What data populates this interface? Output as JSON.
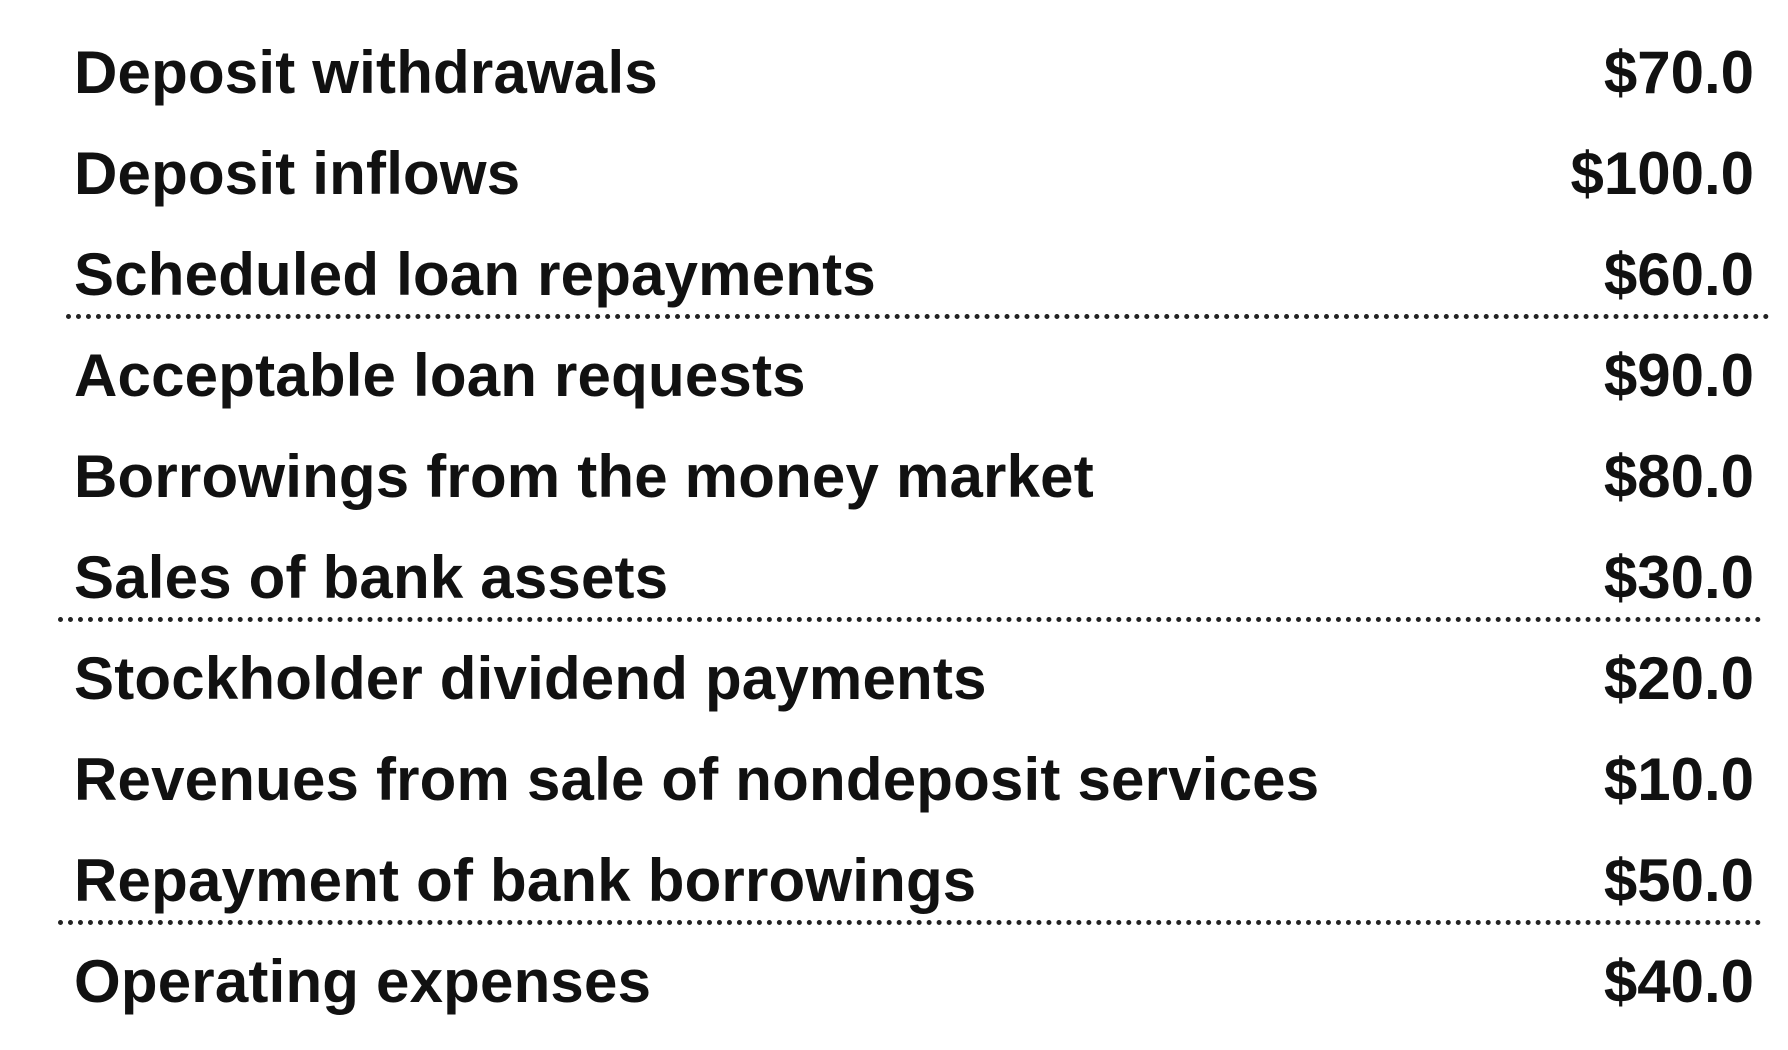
{
  "items": [
    {
      "label": "Deposit withdrawals",
      "value": "$70.0"
    },
    {
      "label": "Deposit inflows",
      "value": "$100.0"
    },
    {
      "label": "Scheduled loan repayments",
      "value": "$60.0"
    },
    {
      "label": "Acceptable loan  requests",
      "value": "$90.0"
    },
    {
      "label": "Borrowings from the money market",
      "value": "$80.0"
    },
    {
      "label": "Sales of bank assets",
      "value": "$30.0"
    },
    {
      "label": "Stockholder dividend payments",
      "value": "$20.0"
    },
    {
      "label": "Revenues from sale of nondeposit services",
      "value": "$10.0"
    },
    {
      "label": "Repayment of bank borrowings",
      "value": "$50.0"
    },
    {
      "label": "Operating expenses",
      "value": "$40.0"
    }
  ]
}
